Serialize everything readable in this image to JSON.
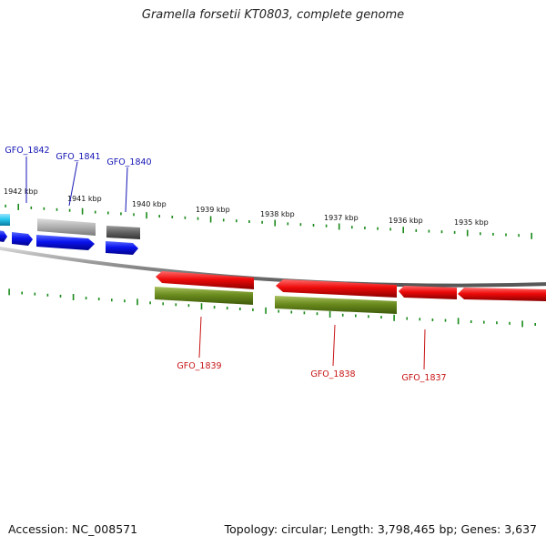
{
  "title": "Gramella forsetii KT0803, complete genome",
  "footer": {
    "accession": "Accession: NC_008571",
    "summary": "Topology: circular; Length: 3,798,465 bp; Genes: 3,637"
  },
  "scale_labels": [
    "1942 kbp",
    "1941 kbp",
    "1940 kbp",
    "1939 kbp",
    "1938 kbp",
    "1937 kbp",
    "1936 kbp",
    "1935 kbp"
  ],
  "gene_labels": {
    "top": [
      "GFO_1842",
      "GFO_1841",
      "GFO_1840"
    ],
    "bottom": [
      "GFO_1839",
      "GFO_1838",
      "GFO_1837"
    ]
  },
  "colors": {
    "forward_cds": "#0a14ee",
    "forward_gene": "#b4b4b4",
    "forward_dark": "#666666",
    "reverse_cds": "#ee0a0a",
    "reverse_gene": "#6b8c1e",
    "cyan": "#28c8ee",
    "tick": "#1a8a1a",
    "label_blue": "#1414b4",
    "label_red": "#c81414"
  }
}
